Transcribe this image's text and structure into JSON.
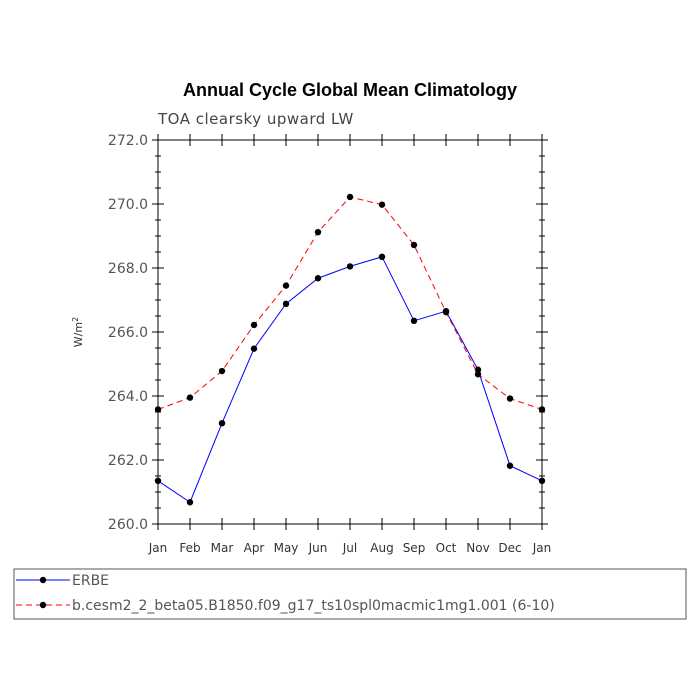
{
  "chart_data": {
    "type": "line",
    "title": "Annual Cycle Global Mean Climatology",
    "subtitle": "TOA clearsky upward LW",
    "ylabel_base": "W/m",
    "ylabel_sup": "2",
    "xlabel": "",
    "ylim": [
      260.0,
      272.0
    ],
    "yticks": [
      "260.0",
      "262.0",
      "264.0",
      "266.0",
      "268.0",
      "270.0",
      "272.0"
    ],
    "categories": [
      "Jan",
      "Feb",
      "Mar",
      "Apr",
      "May",
      "Jun",
      "Jul",
      "Aug",
      "Sep",
      "Oct",
      "Nov",
      "Dec",
      "Jan"
    ],
    "series": [
      {
        "name": "ERBE",
        "color": "#0000ff",
        "dash": "solid",
        "values": [
          261.35,
          260.68,
          263.15,
          265.48,
          266.88,
          267.68,
          268.05,
          268.35,
          266.35,
          266.65,
          264.82,
          261.82,
          261.35
        ]
      },
      {
        "name": "b.cesm2_2_beta05.B1850.f09_g17_ts10spl0macmic1mg1.001 (6-10)",
        "color": "#ff0000",
        "dash": "dashed",
        "values": [
          263.58,
          263.95,
          264.78,
          266.22,
          267.45,
          269.12,
          270.22,
          269.98,
          268.72,
          266.62,
          264.68,
          263.92,
          263.58
        ]
      }
    ]
  }
}
